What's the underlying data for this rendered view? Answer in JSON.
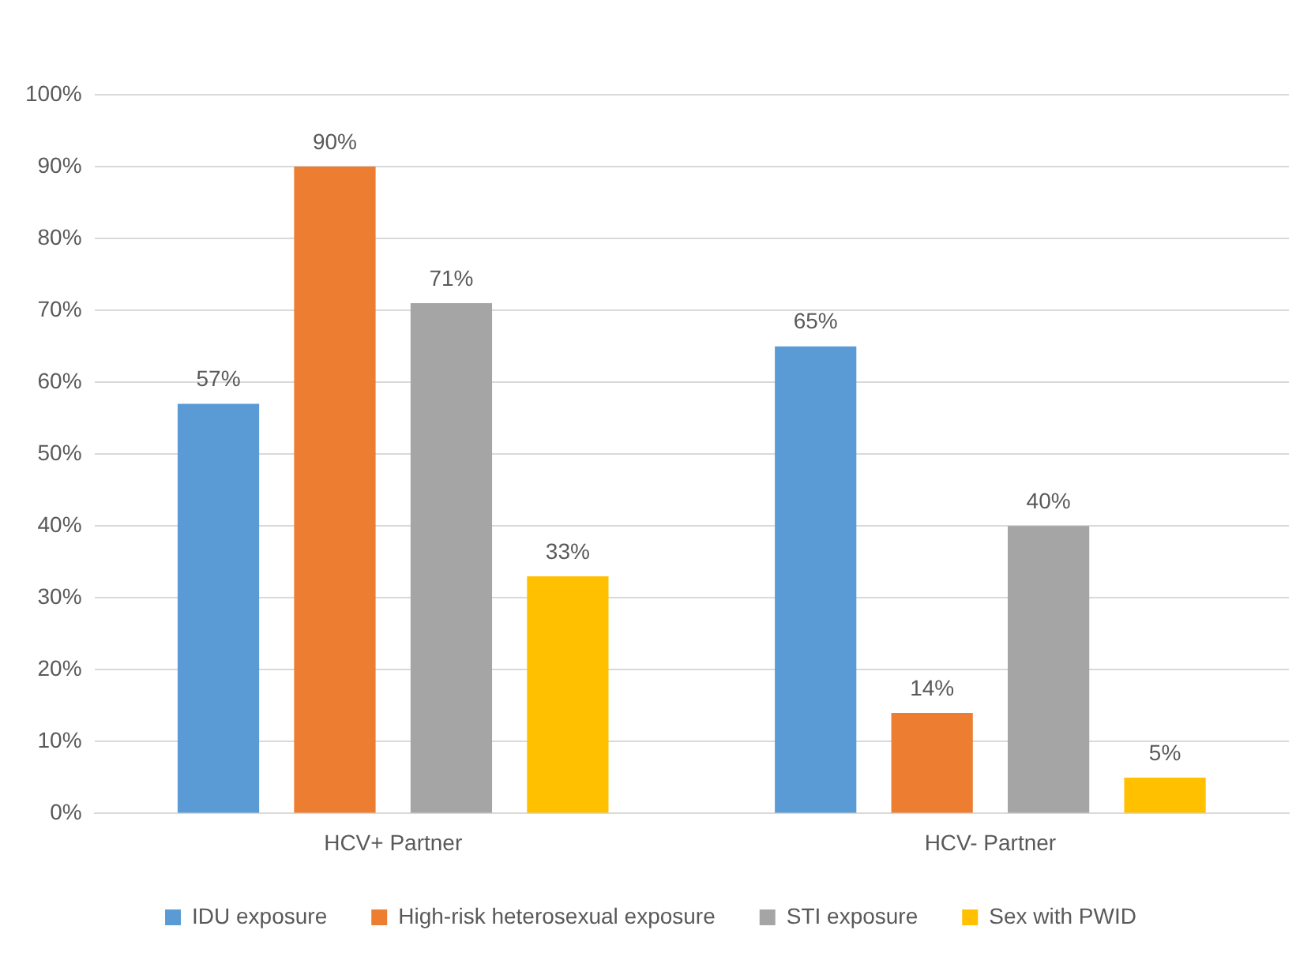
{
  "chart_data": {
    "type": "bar",
    "categories": [
      "HCV+ Partner",
      "HCV- Partner"
    ],
    "series": [
      {
        "name": "IDU exposure",
        "color": "#5b9bd5",
        "values": [
          57,
          65
        ],
        "value_labels": [
          "57%",
          "65%"
        ]
      },
      {
        "name": "High-risk heterosexual exposure",
        "color": "#ed7d31",
        "values": [
          90,
          14
        ],
        "value_labels": [
          "90%",
          "14%"
        ]
      },
      {
        "name": "STI exposure",
        "color": "#a5a5a5",
        "values": [
          71,
          40
        ],
        "value_labels": [
          "71%",
          "40%"
        ]
      },
      {
        "name": "Sex with PWID",
        "color": "#ffc000",
        "values": [
          33,
          5
        ],
        "value_labels": [
          "33%",
          "5%"
        ]
      }
    ],
    "ylim": [
      0,
      100
    ],
    "yticks": [
      {
        "value": 0,
        "label": "0%"
      },
      {
        "value": 10,
        "label": "10%"
      },
      {
        "value": 20,
        "label": "20%"
      },
      {
        "value": 30,
        "label": "30%"
      },
      {
        "value": 40,
        "label": "40%"
      },
      {
        "value": 50,
        "label": "50%"
      },
      {
        "value": 60,
        "label": "60%"
      },
      {
        "value": 70,
        "label": "70%"
      },
      {
        "value": 80,
        "label": "80%"
      },
      {
        "value": 90,
        "label": "90%"
      },
      {
        "value": 100,
        "label": "100%"
      }
    ],
    "grid": "y",
    "legend": "bottom"
  }
}
